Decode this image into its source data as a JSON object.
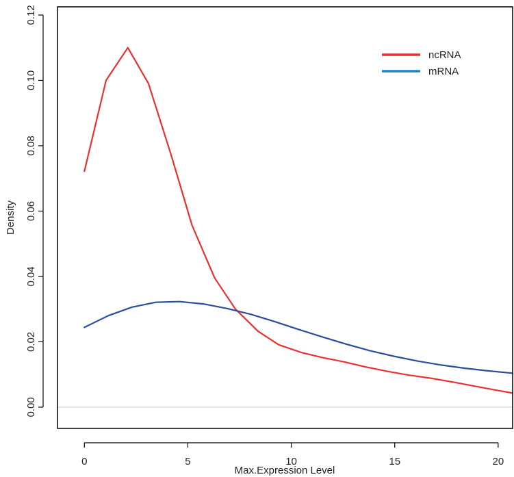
{
  "chart_data": {
    "type": "line",
    "title": "",
    "xlabel": "Max.Expression Level",
    "ylabel": "Density",
    "xlim": [
      -1.3,
      20.7
    ],
    "ylim": [
      -0.0065,
      0.1225
    ],
    "xticks": [
      0,
      5,
      10,
      15,
      20
    ],
    "xtick_labels": [
      "0",
      "5",
      "10",
      "15",
      "20"
    ],
    "yticks": [
      0.0,
      0.02,
      0.04,
      0.06,
      0.08,
      0.1,
      0.12
    ],
    "ytick_labels": [
      "0.00",
      "0.02",
      "0.04",
      "0.06",
      "0.08",
      "0.10",
      "0.12"
    ],
    "grid": false,
    "baseline": 0,
    "legend_position": "top-right",
    "series": [
      {
        "name": "ncRNA",
        "color": "#e8312f",
        "x": [
          0,
          1.05,
          2.1,
          3.1,
          4.2,
          5.2,
          6.3,
          7.3,
          8.4,
          9.4,
          10.5,
          11.5,
          12.6,
          13.6,
          14.7,
          15.7,
          16.8,
          17.8,
          18.9,
          19.9,
          20.7
        ],
        "y": [
          0.0722,
          0.1,
          0.11,
          0.099,
          0.077,
          0.0557,
          0.0395,
          0.03,
          0.0232,
          0.0191,
          0.0167,
          0.0152,
          0.0138,
          0.0123,
          0.0109,
          0.0098,
          0.0088,
          0.0077,
          0.0064,
          0.0052,
          0.0043
        ]
      },
      {
        "name": "mRNA",
        "color": "#2d4b9e",
        "legend_color": "#1f87c8",
        "x": [
          0,
          1.15,
          2.3,
          3.45,
          4.6,
          5.75,
          6.9,
          8.05,
          9.2,
          10.35,
          11.5,
          12.65,
          13.8,
          14.95,
          16.1,
          17.25,
          18.4,
          19.55,
          20.7
        ],
        "y": [
          0.0244,
          0.028,
          0.0306,
          0.0321,
          0.0323,
          0.0316,
          0.0302,
          0.0284,
          0.0262,
          0.0238,
          0.0215,
          0.0193,
          0.0173,
          0.0156,
          0.0141,
          0.0129,
          0.0119,
          0.0111,
          0.0104
        ]
      }
    ]
  }
}
